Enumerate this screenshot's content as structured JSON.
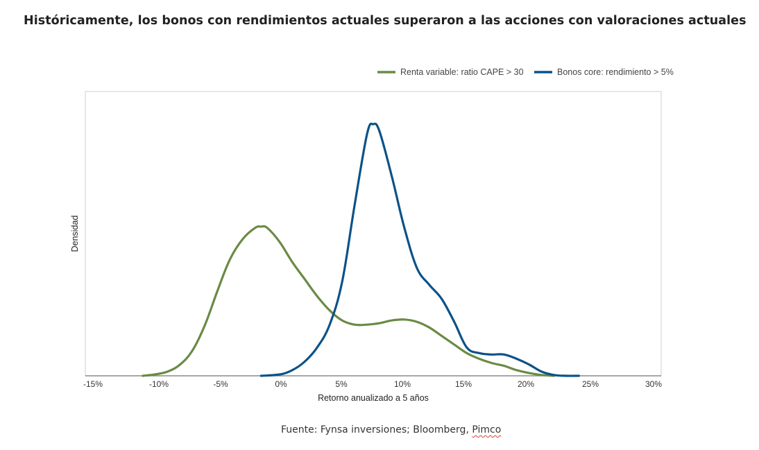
{
  "title": "Históricamente, los bonos con rendimientos actuales superaron a las acciones con valoraciones actuales",
  "source": {
    "prefix": "Fuente: Fynsa inversiones; Bloomberg, ",
    "misspelled": "Pimco"
  },
  "colors": {
    "equity": "#6a8a45",
    "bonds": "#0b5288",
    "axis": "#8a8a8a",
    "frame": "#cfcfcf"
  },
  "chart_data": {
    "type": "line",
    "xlabel": "Retorno anualizado a 5 años",
    "ylabel": "Densidad",
    "xlim": [
      -15,
      30
    ],
    "ylim": [
      0,
      1
    ],
    "x_unit": "%",
    "x_ticks": [
      "-15%",
      "-10%",
      "-5%",
      "0%",
      "5%",
      "10%",
      "15%",
      "20%",
      "25%",
      "30%"
    ],
    "y_ticks": [],
    "grid": false,
    "legend_position": "top-right",
    "series": [
      {
        "name": "Renta variable: ratio CAPE > 30",
        "color": "#6a8a45",
        "points": [
          [
            -11,
            0.0
          ],
          [
            -10,
            0.005
          ],
          [
            -9,
            0.015
          ],
          [
            -8,
            0.04
          ],
          [
            -7,
            0.09
          ],
          [
            -6,
            0.18
          ],
          [
            -5,
            0.3
          ],
          [
            -4,
            0.41
          ],
          [
            -3,
            0.48
          ],
          [
            -2,
            0.52
          ],
          [
            -1.5,
            0.525
          ],
          [
            -1,
            0.52
          ],
          [
            0,
            0.47
          ],
          [
            1,
            0.4
          ],
          [
            2,
            0.34
          ],
          [
            3,
            0.28
          ],
          [
            4,
            0.23
          ],
          [
            5,
            0.195
          ],
          [
            6,
            0.18
          ],
          [
            7,
            0.18
          ],
          [
            8,
            0.185
          ],
          [
            9,
            0.195
          ],
          [
            10,
            0.198
          ],
          [
            11,
            0.19
          ],
          [
            12,
            0.17
          ],
          [
            13,
            0.14
          ],
          [
            14,
            0.11
          ],
          [
            15,
            0.08
          ],
          [
            16,
            0.06
          ],
          [
            17,
            0.045
          ],
          [
            18,
            0.035
          ],
          [
            19,
            0.02
          ],
          [
            20,
            0.01
          ],
          [
            21,
            0.003
          ],
          [
            22,
            0.0
          ]
        ]
      },
      {
        "name": "Bonos core: rendimiento > 5%",
        "color": "#0b5288",
        "points": [
          [
            -1.5,
            0.0
          ],
          [
            0,
            0.005
          ],
          [
            1,
            0.02
          ],
          [
            2,
            0.05
          ],
          [
            3,
            0.1
          ],
          [
            4,
            0.18
          ],
          [
            5,
            0.33
          ],
          [
            6,
            0.6
          ],
          [
            7,
            0.85
          ],
          [
            7.5,
            0.885
          ],
          [
            8,
            0.86
          ],
          [
            9,
            0.7
          ],
          [
            10,
            0.52
          ],
          [
            11,
            0.38
          ],
          [
            12,
            0.32
          ],
          [
            13,
            0.27
          ],
          [
            14,
            0.19
          ],
          [
            15,
            0.1
          ],
          [
            16,
            0.08
          ],
          [
            17,
            0.075
          ],
          [
            18,
            0.075
          ],
          [
            19,
            0.06
          ],
          [
            20,
            0.04
          ],
          [
            21,
            0.015
          ],
          [
            22,
            0.003
          ],
          [
            23,
            0.0
          ],
          [
            24,
            0.0
          ]
        ]
      }
    ]
  }
}
